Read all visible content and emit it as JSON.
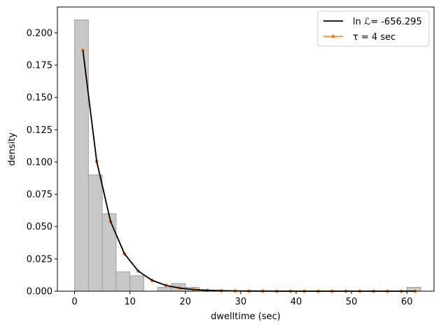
{
  "chart_data": {
    "type": "bar",
    "xlabel": "dwelltime (sec)",
    "ylabel": "density",
    "xlim": [
      -3.1,
      64.9
    ],
    "ylim": [
      0,
      0.22
    ],
    "xticks": [
      0,
      10,
      20,
      30,
      40,
      50,
      60
    ],
    "xtick_labels": [
      "0",
      "10",
      "20",
      "30",
      "40",
      "50",
      "60"
    ],
    "yticks": [
      0,
      0.025,
      0.05,
      0.075,
      0.1,
      0.125,
      0.15,
      0.175,
      0.2
    ],
    "ytick_labels": [
      "0.000",
      "0.025",
      "0.050",
      "0.075",
      "0.100",
      "0.125",
      "0.150",
      "0.175",
      "0.200"
    ],
    "grid": false,
    "legend_position": "top-right",
    "histogram": {
      "bin_edges": [
        0.0,
        2.5,
        5.0,
        7.5,
        10.0,
        12.5,
        15.0,
        17.5,
        20.0,
        22.5,
        25.0,
        27.5,
        30.0,
        32.5,
        35.0,
        37.5,
        40.0,
        42.5,
        45.0,
        47.5,
        50.0,
        52.5,
        55.0,
        57.5,
        60.0,
        62.5
      ],
      "values": [
        0.21,
        0.09,
        0.06,
        0.015,
        0.012,
        0.0,
        0.003,
        0.006,
        0.003,
        0.0,
        0.0,
        0.0,
        0.0,
        0.0,
        0.0,
        0.0,
        0.0,
        0.0,
        0.0,
        0.0,
        0.0,
        0.0,
        0.0,
        0.0,
        0.003
      ],
      "color": "#c8c8c8",
      "edgecolor": "#a0a0a0"
    },
    "series": [
      {
        "name": "ln ℒ= -656.295",
        "color": "#000000",
        "marker": "none",
        "x": [
          1.5,
          4.0,
          6.5,
          9.0,
          11.5,
          14.0,
          16.5,
          19.0,
          21.5,
          24.0,
          26.5,
          29.0,
          31.5,
          34.0,
          36.5,
          39.0,
          41.5,
          44.0,
          46.5,
          49.0,
          51.5,
          54.0,
          56.5,
          59.0,
          61.5
        ],
        "values": [
          0.1866,
          0.1004,
          0.054,
          0.029,
          0.0156,
          0.0084,
          0.0045,
          0.0024,
          0.0013,
          0.0007,
          0.0004,
          0.0002,
          0.0001,
          0.0001,
          0.0,
          0.0,
          0.0,
          0.0,
          0.0,
          0.0,
          0.0,
          0.0,
          0.0,
          0.0,
          0.0
        ]
      },
      {
        "name": "τ = 4 sec",
        "color": "#ff7f0e",
        "marker": "circle",
        "x": [
          1.5,
          4.0,
          6.5,
          9.0,
          11.5,
          14.0,
          16.5,
          19.0,
          21.5,
          24.0,
          26.5,
          29.0,
          31.5,
          34.0,
          36.5,
          39.0,
          41.5,
          44.0,
          46.5,
          49.0,
          51.5,
          54.0,
          56.5,
          59.0,
          61.5
        ],
        "values": [
          0.1866,
          0.1004,
          0.054,
          0.029,
          0.0156,
          0.0084,
          0.0045,
          0.0024,
          0.0013,
          0.0007,
          0.0004,
          0.0002,
          0.0001,
          0.0001,
          0.0,
          0.0,
          0.0,
          0.0,
          0.0,
          0.0,
          0.0,
          0.0,
          0.0,
          0.0,
          0.0
        ]
      }
    ]
  }
}
